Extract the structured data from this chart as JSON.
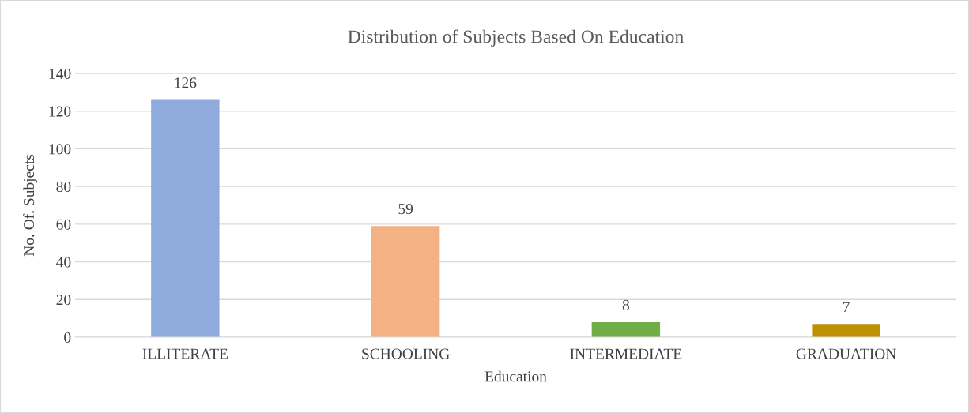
{
  "chart_data": {
    "type": "bar",
    "title": "Distribution of Subjects Based On Education",
    "xlabel": "Education",
    "ylabel": "No. Of. Subjects",
    "categories": [
      "ILLITERATE",
      "SCHOOLING",
      "INTERMEDIATE",
      "GRADUATION"
    ],
    "values": [
      126,
      59,
      8,
      7
    ],
    "colors": [
      "#8faadc",
      "#f4b183",
      "#70ad47",
      "#bf9000"
    ],
    "ylim": [
      0,
      140
    ],
    "yticks": [
      0,
      20,
      40,
      60,
      80,
      100,
      120,
      140
    ],
    "grid": "y",
    "data_labels": true
  }
}
